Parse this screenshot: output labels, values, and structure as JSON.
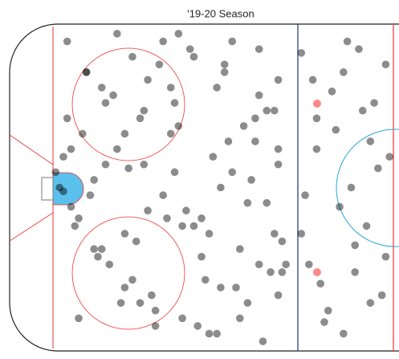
{
  "chart_data": {
    "type": "scatter",
    "title": "'19-20 Season",
    "xlim": [
      -100,
      0
    ],
    "ylim": [
      -42.5,
      42.5
    ],
    "color": "#000000",
    "alpha": 0.45,
    "x": [
      -85,
      -80,
      -75,
      -70,
      -65,
      -60,
      -55,
      -50,
      -45,
      -40,
      -35,
      -30,
      -84,
      -78,
      -72,
      -66,
      -58,
      -52,
      -46,
      -38,
      -32,
      -29,
      -86,
      -82,
      -76,
      -68,
      -62,
      -56,
      -48,
      -42,
      -36,
      -31,
      -87,
      -81,
      -74,
      -69,
      -63,
      -57,
      -51,
      -44,
      -39,
      -33,
      -83,
      -79,
      -73,
      -67,
      -61,
      -54,
      -47,
      -41,
      -37,
      -30,
      -85,
      -77,
      -71,
      -64,
      -59,
      -53,
      -49,
      -43,
      -34,
      -28,
      -88,
      -80,
      -70,
      -65,
      -60,
      -55,
      -45,
      -40,
      -35,
      -30,
      -86,
      -75,
      -68,
      -62,
      -58,
      -50,
      -46,
      -38,
      -33,
      -29,
      -84,
      -78,
      -72,
      -66,
      -56,
      -52,
      -44,
      -36,
      -31,
      -82,
      -76,
      -70,
      -64,
      -57,
      -48,
      -42,
      -35,
      -30,
      -24,
      -22,
      -20,
      -18,
      -16,
      -14,
      -12,
      -10,
      -8,
      -6,
      -4,
      -2,
      -23,
      -21,
      -19,
      -15,
      -13,
      -11,
      -9,
      -7,
      -5,
      -3,
      -1,
      -24,
      -17,
      -13,
      -10,
      -6,
      -2,
      -20
    ],
    "y": [
      38,
      30,
      22,
      14,
      6,
      -2,
      -10,
      -18,
      -26,
      -34,
      36,
      28,
      -5,
      2,
      10,
      18,
      26,
      34,
      -38,
      -30,
      -22,
      -14,
      8,
      -8,
      -16,
      -24,
      -32,
      40,
      -12,
      4,
      12,
      20,
      0,
      14,
      -20,
      5,
      -28,
      22,
      -36,
      30,
      16,
      -4,
      -10,
      -2,
      24,
      -14,
      32,
      -6,
      8,
      -26,
      2,
      10,
      18,
      -18,
      -30,
      28,
      -8,
      36,
      -24,
      12,
      -40,
      -20,
      4,
      30,
      -12,
      20,
      38,
      -34,
      0,
      -16,
      24,
      -28,
      -1,
      6,
      34,
      -36,
      14,
      -8,
      26,
      -4,
      20,
      -22,
      10,
      -16,
      40,
      -30,
      16,
      -10,
      32,
      18,
      -12,
      -34,
      26,
      -26,
      -6,
      4,
      -38,
      38,
      -20,
      6,
      35,
      -20,
      10,
      -35,
      25,
      -5,
      38,
      -15,
      20,
      -30,
      5,
      32,
      -2,
      28,
      -25,
      15,
      -38,
      0,
      36,
      -10,
      22,
      -28,
      8,
      -12,
      -32,
      30,
      -22,
      12,
      -18,
      18
    ]
  }
}
